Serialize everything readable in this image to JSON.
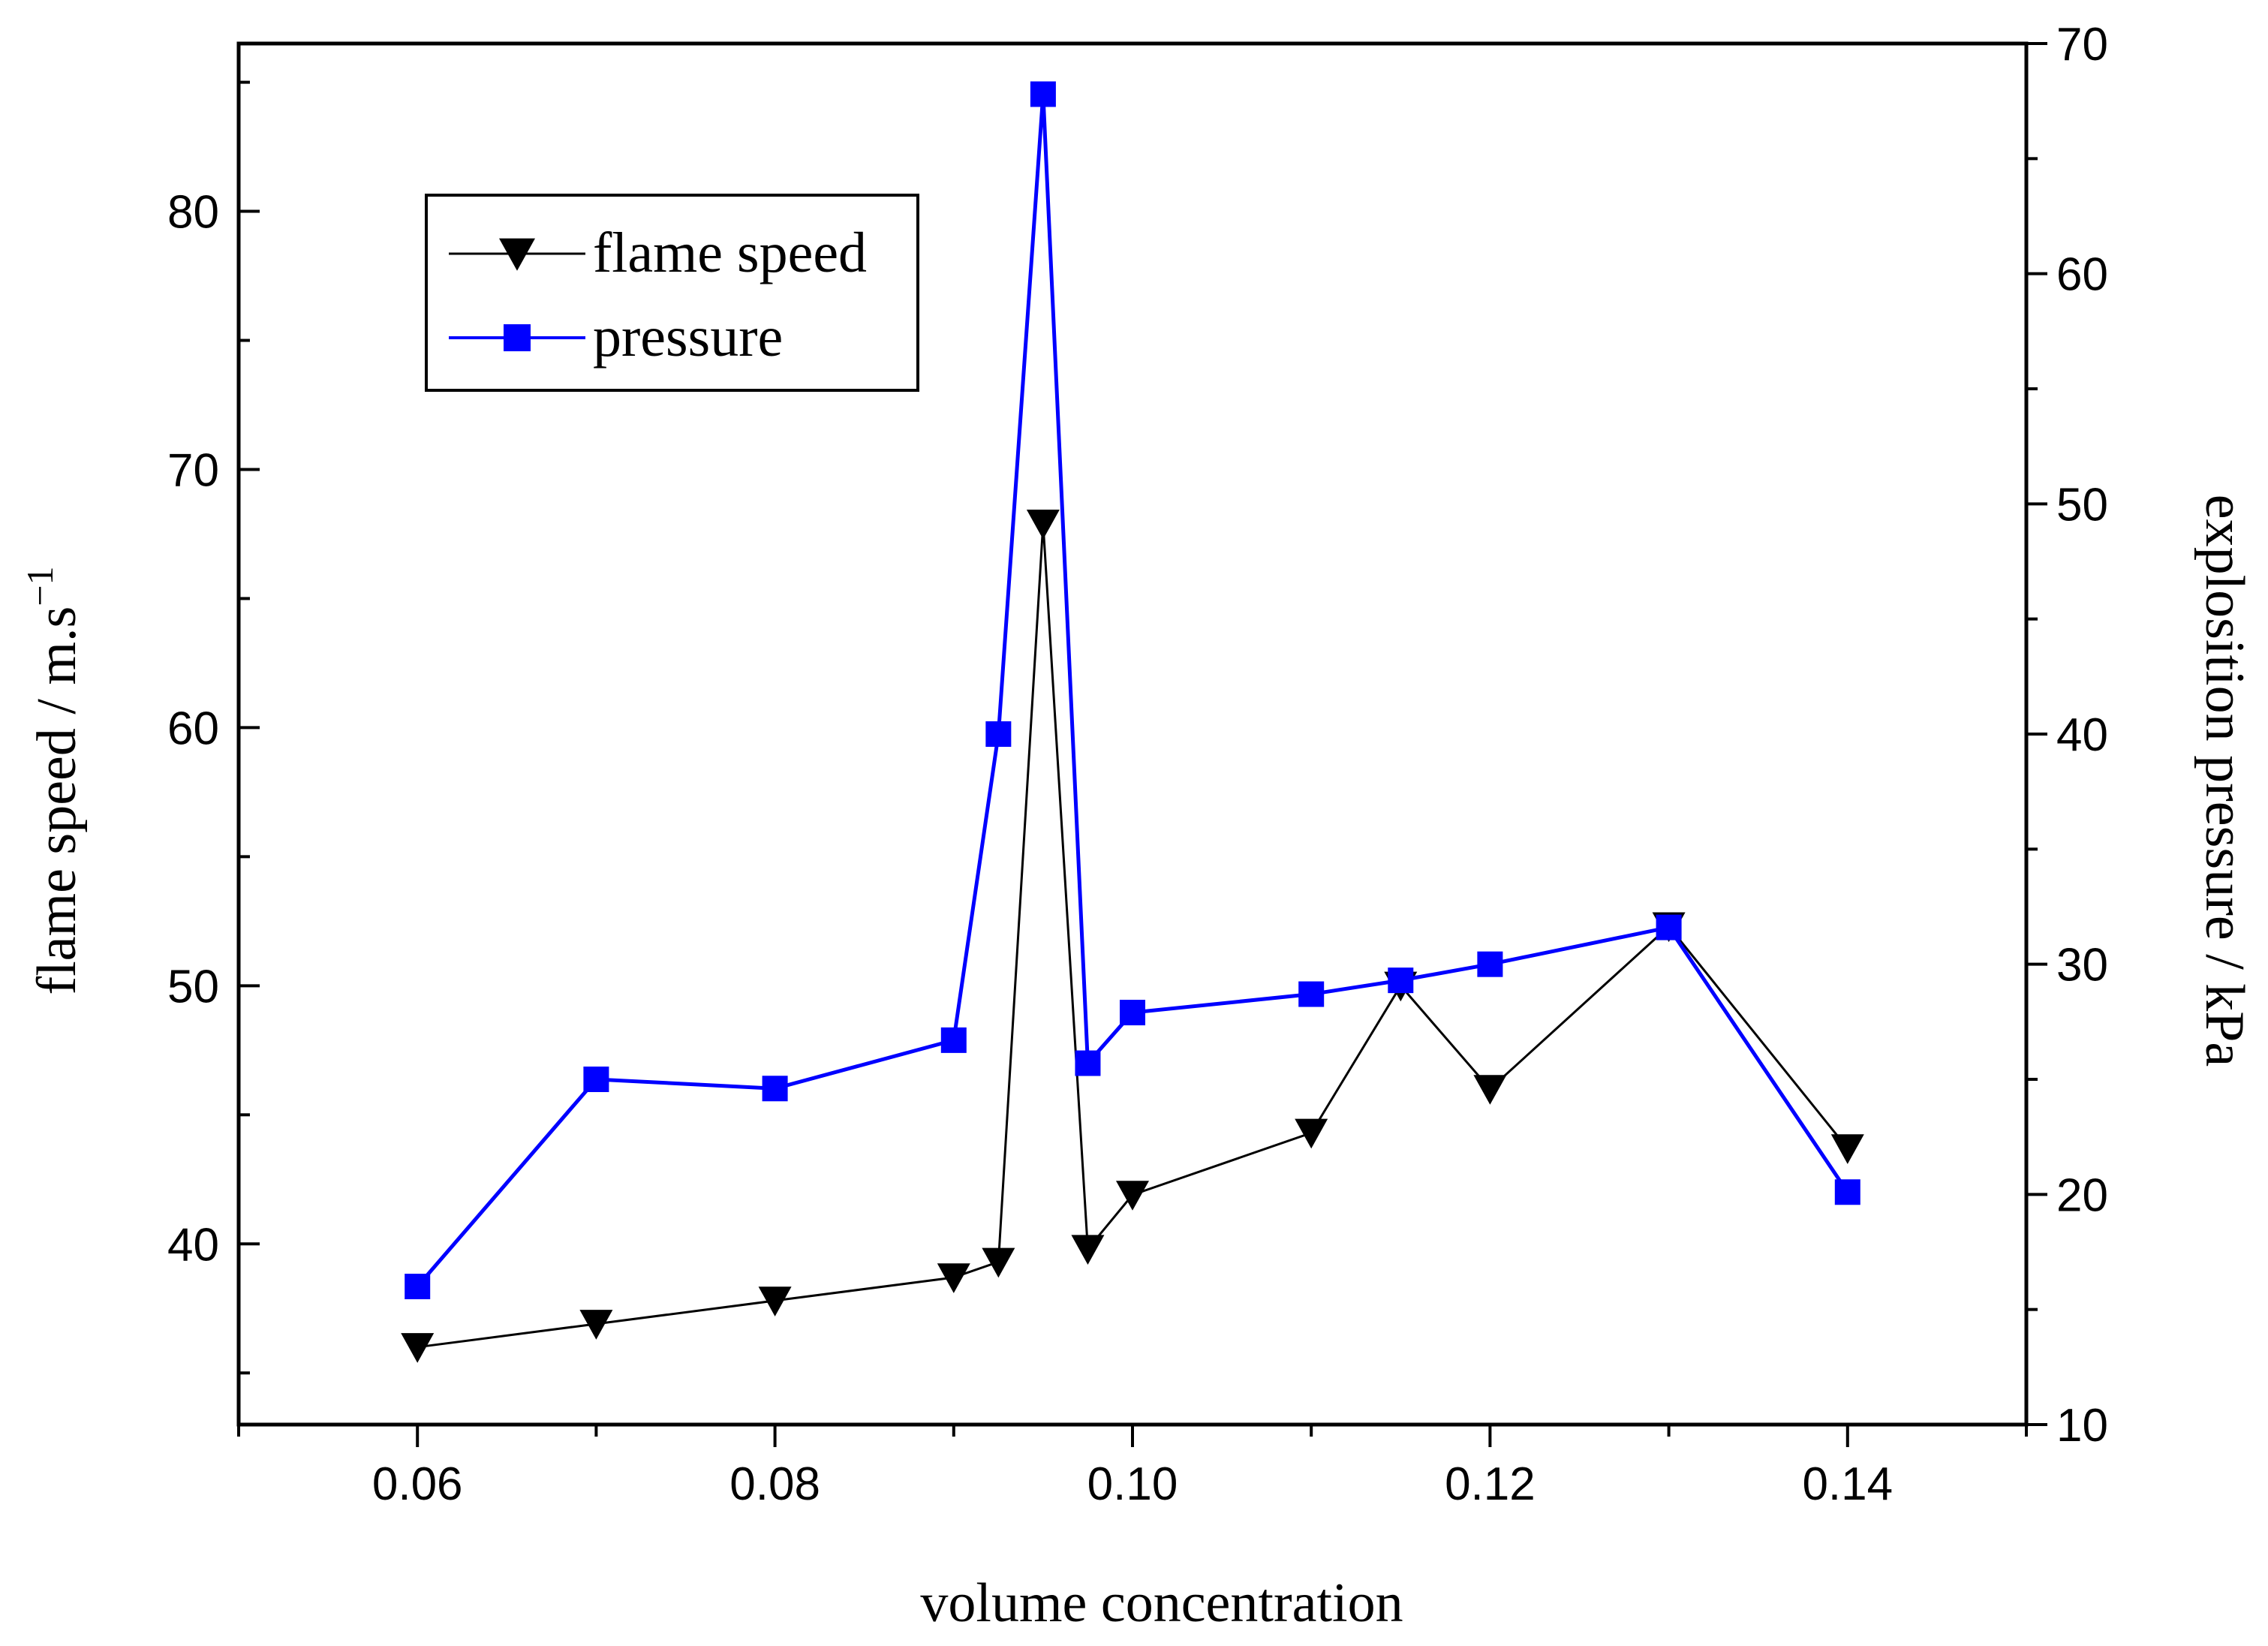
{
  "chart_data": {
    "type": "line",
    "title": "",
    "xlabel": "volume  concentration",
    "ylabel_left": "flame speed / m.s",
    "ylabel_left_sup": "−1",
    "ylabel_right": "explosition pressure / kPa",
    "xlim": [
      0.05,
      0.15
    ],
    "ylim_left": [
      33.0,
      86.5
    ],
    "ylim_right": [
      10,
      70
    ],
    "x_ticks": [
      "0.06",
      "0.08",
      "0.10",
      "0.12",
      "0.14"
    ],
    "y_left_ticks": [
      "40",
      "50",
      "60",
      "70",
      "80"
    ],
    "y_right_ticks": [
      "10",
      "20",
      "30",
      "40",
      "50",
      "60",
      "70"
    ],
    "grid": false,
    "legend_position": "top-left",
    "series": [
      {
        "name": "flame speed",
        "axis": "left",
        "color": "#000000",
        "marker": "down-triangle",
        "x": [
          0.06,
          0.07,
          0.08,
          0.09,
          0.0925,
          0.095,
          0.0975,
          0.1,
          0.11,
          0.115,
          0.12,
          0.13,
          0.14
        ],
        "values": [
          36.0,
          36.9,
          37.8,
          38.7,
          39.3,
          67.9,
          39.8,
          41.9,
          44.3,
          50.0,
          46.0,
          52.3,
          43.7
        ]
      },
      {
        "name": "pressure",
        "axis": "right",
        "color": "#0000ff",
        "marker": "square",
        "x": [
          0.06,
          0.07,
          0.08,
          0.09,
          0.0925,
          0.095,
          0.0975,
          0.1,
          0.11,
          0.115,
          0.12,
          0.13,
          0.14
        ],
        "values": [
          16.0,
          25.0,
          24.6,
          26.7,
          40.0,
          67.8,
          25.7,
          27.9,
          28.7,
          29.3,
          30.0,
          31.6,
          20.1
        ]
      }
    ]
  }
}
